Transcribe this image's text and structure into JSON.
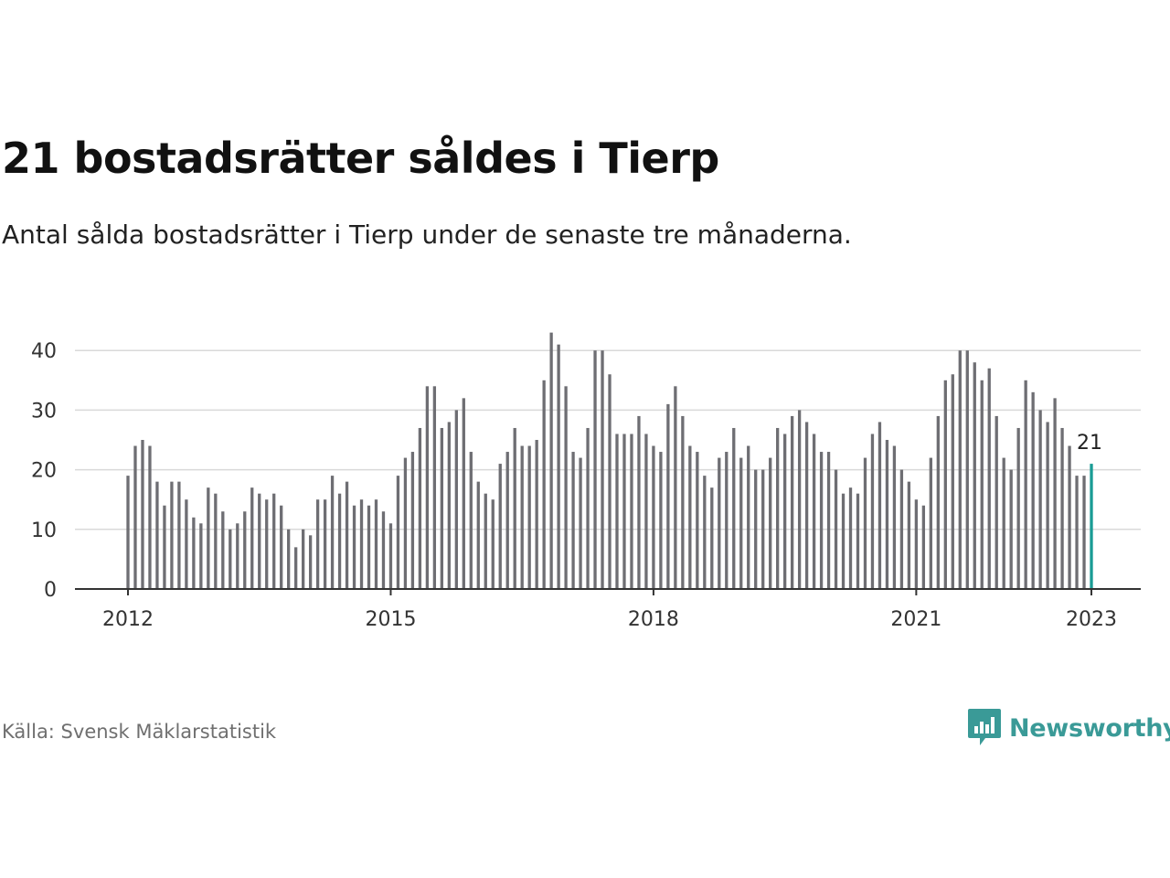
{
  "header": {
    "title": "21 bostadsrätter såldes i Tierp",
    "subtitle": "Antal sålda bostadsrätter i Tierp under de senaste tre månaderna."
  },
  "footer": {
    "source": "Källa: Svensk Mäklarstatistik",
    "brand": "Newsworthy",
    "brand_icon": "bar-chart-speech-bubble-icon"
  },
  "colors": {
    "bar": "#6e6e73",
    "highlight": "#1a9c95",
    "grid": "#d9d9d9",
    "axis": "#333333",
    "brand": "#3a9a97"
  },
  "chart_data": {
    "type": "bar",
    "title": "21 bostadsrätter såldes i Tierp",
    "subtitle": "Antal sålda bostadsrätter i Tierp under de senaste tre månaderna.",
    "xlabel": "",
    "ylabel": "",
    "ylim": [
      0,
      45
    ],
    "yticks": [
      0,
      10,
      20,
      30,
      40
    ],
    "grid": true,
    "legend": "none",
    "x_range": [
      "2012-01",
      "2023-01"
    ],
    "xticks": [
      "2012",
      "2015",
      "2018",
      "2021",
      "2023"
    ],
    "x_start": "2012-01",
    "x_end": "2023-01",
    "values": [
      19,
      24,
      25,
      24,
      18,
      14,
      18,
      18,
      15,
      12,
      11,
      17,
      16,
      13,
      10,
      11,
      13,
      17,
      16,
      15,
      16,
      14,
      10,
      7,
      10,
      9,
      15,
      15,
      19,
      16,
      18,
      14,
      15,
      14,
      15,
      13,
      11,
      19,
      22,
      23,
      27,
      34,
      34,
      27,
      28,
      30,
      32,
      23,
      18,
      16,
      15,
      21,
      23,
      27,
      24,
      24,
      25,
      35,
      43,
      41,
      34,
      23,
      22,
      27,
      40,
      40,
      36,
      26,
      26,
      26,
      29,
      26,
      24,
      23,
      31,
      34,
      29,
      24,
      23,
      19,
      17,
      22,
      23,
      27,
      22,
      24,
      20,
      20,
      22,
      27,
      26,
      29,
      30,
      28,
      26,
      23,
      23,
      20,
      16,
      17,
      16,
      22,
      26,
      28,
      25,
      24,
      20,
      18,
      15,
      14,
      22,
      29,
      35,
      36,
      40,
      40,
      38,
      35,
      37,
      29,
      22,
      20,
      27,
      35,
      33,
      30,
      28,
      32,
      27,
      24,
      19,
      19,
      21
    ],
    "highlight_last": true,
    "last_value_label": "21"
  }
}
